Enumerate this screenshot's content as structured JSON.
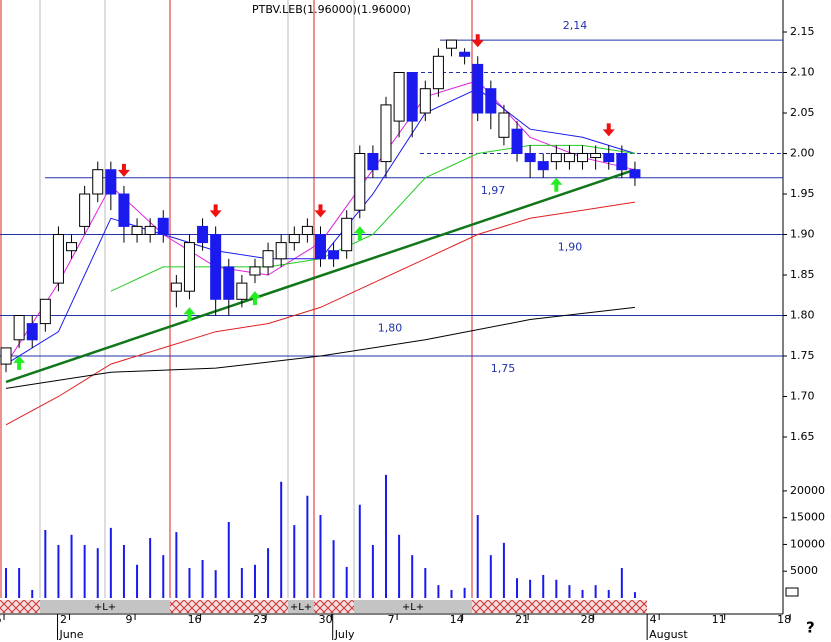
{
  "chart_data": {
    "type": "candlestick",
    "title": "PTBV.LEB(1.96000)(1.96000)",
    "xticks": [
      {
        "value": 0,
        "label": "6"
      },
      {
        "value": 5,
        "label": "2"
      },
      {
        "value": 10,
        "label": "9"
      },
      {
        "value": 15,
        "label": "16"
      },
      {
        "value": 20,
        "label": "23"
      },
      {
        "value": 25,
        "label": "30"
      },
      {
        "value": 30,
        "label": "7"
      },
      {
        "value": 35,
        "label": "14"
      },
      {
        "value": 40,
        "label": "21"
      },
      {
        "value": 45,
        "label": "28"
      },
      {
        "value": 50,
        "label": "4"
      },
      {
        "value": 55,
        "label": "11"
      },
      {
        "value": 60,
        "label": "18"
      }
    ],
    "month_labels": [
      {
        "value": 5,
        "label": "June"
      },
      {
        "value": 26,
        "label": "July"
      },
      {
        "value": 50,
        "label": "August"
      }
    ],
    "xlim": [
      -0.46,
      59.3
    ],
    "ylim": [
      1.65,
      2.15
    ],
    "yticks": [
      1.65,
      {
        "value": 1.7,
        "label": "1.70"
      },
      1.75,
      {
        "value": 1.8,
        "label": "1.80"
      },
      1.85,
      {
        "value": 1.9,
        "label": "1.90"
      },
      1.95,
      {
        "value": 2.0,
        "label": "2.00"
      },
      2.05,
      {
        "value": 2.1,
        "label": "2.10"
      },
      2.15
    ],
    "open": [
      1.74,
      1.77,
      1.79,
      1.79,
      1.84,
      1.88,
      1.91,
      1.95,
      1.98,
      1.95,
      1.9,
      1.9,
      1.92,
      1.83,
      1.83,
      1.91,
      1.9,
      1.86,
      1.82,
      1.85,
      1.86,
      1.87,
      1.89,
      1.9,
      1.9,
      1.88,
      1.88,
      1.93,
      2.0,
      1.99,
      2.04,
      2.1,
      2.05,
      2.08,
      2.13,
      2.125,
      2.11,
      2.08,
      2.02,
      2.03,
      2.0,
      1.99,
      1.99,
      1.99,
      1.99,
      1.995,
      2.0,
      2.0,
      1.98
    ],
    "high": [
      1.76,
      1.8,
      1.8,
      1.82,
      1.91,
      1.9,
      1.96,
      1.99,
      1.99,
      1.96,
      1.92,
      1.92,
      1.93,
      1.85,
      1.9,
      1.92,
      1.91,
      1.87,
      1.85,
      1.87,
      1.89,
      1.9,
      1.91,
      1.92,
      1.91,
      1.89,
      1.93,
      2.01,
      2.01,
      2.07,
      2.1,
      2.1,
      2.09,
      2.13,
      2.14,
      2.13,
      2.12,
      2.09,
      2.06,
      2.04,
      2.01,
      2.0,
      2.01,
      2.01,
      2.01,
      2.01,
      2.01,
      2.01,
      1.99
    ],
    "low": [
      1.73,
      1.76,
      1.76,
      1.78,
      1.83,
      1.87,
      1.9,
      1.94,
      1.93,
      1.89,
      1.89,
      1.89,
      1.89,
      1.81,
      1.82,
      1.88,
      1.8,
      1.8,
      1.81,
      1.84,
      1.85,
      1.86,
      1.88,
      1.89,
      1.86,
      1.86,
      1.87,
      1.92,
      1.97,
      1.97,
      2.02,
      2.02,
      2.04,
      2.07,
      2.12,
      2.11,
      2.04,
      2.03,
      2.01,
      1.99,
      1.97,
      1.97,
      1.98,
      1.98,
      1.98,
      1.98,
      1.98,
      1.97,
      1.96
    ],
    "close": [
      1.76,
      1.8,
      1.77,
      1.82,
      1.9,
      1.89,
      1.95,
      1.98,
      1.95,
      1.91,
      1.91,
      1.91,
      1.9,
      1.84,
      1.89,
      1.89,
      1.82,
      1.82,
      1.84,
      1.86,
      1.88,
      1.89,
      1.9,
      1.91,
      1.87,
      1.87,
      1.92,
      2.0,
      1.98,
      2.06,
      2.1,
      2.04,
      2.08,
      2.12,
      2.14,
      2.12,
      2.05,
      2.05,
      2.05,
      2.0,
      1.99,
      1.98,
      2.0,
      2.0,
      2.0,
      2.0,
      1.99,
      1.98,
      1.97
    ],
    "up_color": "#ffffff",
    "down_color": "#1a1aee",
    "moving_averages": [
      {
        "color": "#e020e0",
        "x": [
          0,
          4,
          8,
          12,
          16,
          20,
          24,
          28,
          32,
          36,
          40,
          44,
          48
        ],
        "values": [
          1.74,
          1.84,
          1.96,
          1.9,
          1.86,
          1.85,
          1.89,
          1.98,
          2.07,
          2.09,
          2.02,
          1.995,
          1.98
        ]
      },
      {
        "color": "#1a1aee",
        "x": [
          0,
          4,
          8,
          12,
          16,
          20,
          24,
          28,
          32,
          36,
          40,
          44,
          48
        ],
        "values": [
          1.74,
          1.78,
          1.92,
          1.9,
          1.88,
          1.87,
          1.87,
          1.95,
          2.05,
          2.08,
          2.03,
          2.02,
          2.0
        ]
      },
      {
        "color": "#22cc22",
        "x": [
          0,
          4,
          8,
          12,
          16,
          20,
          24,
          28,
          32,
          36,
          40,
          44,
          48
        ],
        "values": [
          null,
          null,
          1.83,
          1.86,
          1.86,
          1.86,
          1.87,
          1.9,
          1.97,
          2.0,
          2.01,
          2.01,
          2.0
        ]
      },
      {
        "color": "#e02020",
        "x": [
          0,
          4,
          8,
          12,
          16,
          20,
          24,
          28,
          32,
          36,
          40,
          44,
          48
        ],
        "values": [
          1.665,
          1.7,
          1.74,
          1.76,
          1.78,
          1.79,
          1.81,
          1.84,
          1.87,
          1.9,
          1.92,
          1.93,
          1.94
        ]
      },
      {
        "color": "#000000",
        "x": [
          0,
          8,
          16,
          24,
          32,
          40,
          48
        ],
        "values": [
          1.71,
          1.73,
          1.735,
          1.75,
          1.77,
          1.795,
          1.81
        ]
      }
    ],
    "trendline": {
      "color": "#11771a",
      "x": [
        0,
        48
      ],
      "values": [
        1.718,
        1.98
      ]
    },
    "levels": [
      {
        "value": 2.14,
        "label": "2,14"
      },
      {
        "value": 1.97,
        "label": "1,97"
      },
      {
        "value": 1.9,
        "label": "1,90"
      },
      {
        "value": 1.8,
        "label": "1,80"
      },
      {
        "value": 1.75,
        "label": "1,75"
      }
    ],
    "dashed_levels": [
      2.1,
      2.0
    ],
    "sell_signals": [
      9,
      16,
      24,
      36,
      46
    ],
    "buy_signals": [
      1,
      14,
      19,
      27,
      42
    ],
    "volume": [
      5600,
      5600,
      1500,
      12700,
      9900,
      11800,
      9900,
      9300,
      13100,
      9900,
      6200,
      11200,
      8000,
      12300,
      5600,
      7100,
      5200,
      14200,
      5600,
      6200,
      9300,
      21700,
      13600,
      19100,
      15500,
      10800,
      5800,
      17400,
      9900,
      23000,
      11800,
      8000,
      5600,
      2400,
      1500,
      1900,
      15500,
      8000,
      10300,
      3700,
      3400,
      4300,
      3400,
      2400,
      1500,
      2400,
      1500,
      5600,
      1100
    ],
    "volume_color": "#1a1aee",
    "volume_ylim": [
      0,
      23900
    ],
    "volume_yticks": [
      5000,
      10000,
      15000,
      20000
    ],
    "band_labels": [
      "+L+",
      "+L+",
      "+L+"
    ],
    "help": "?"
  }
}
